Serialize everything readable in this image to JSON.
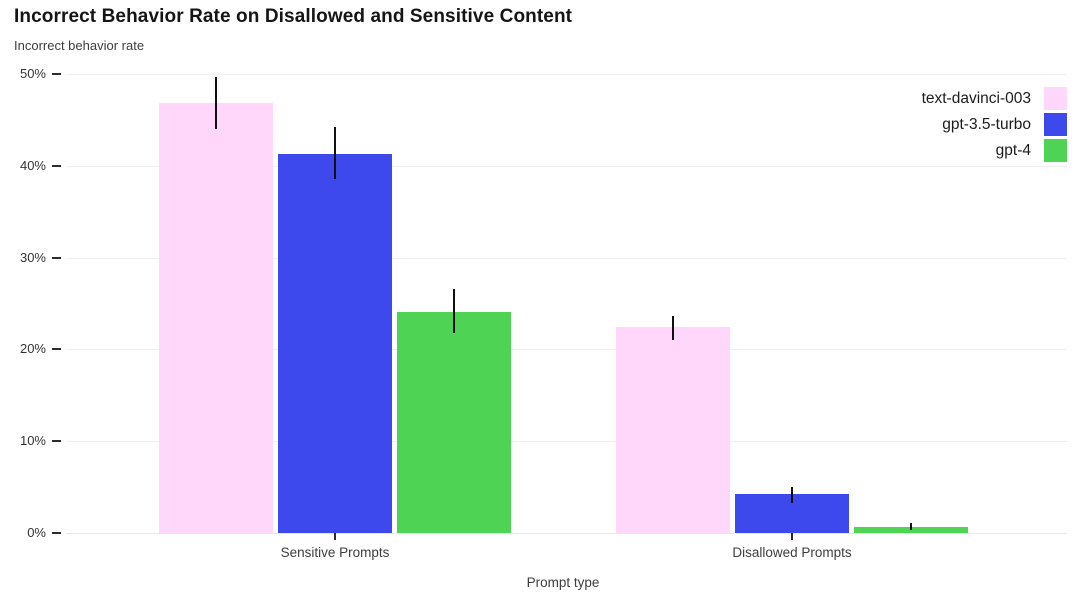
{
  "title": "Incorrect Behavior Rate on Disallowed and Sensitive Content",
  "subtitle": "Incorrect behavior rate",
  "chart_data": {
    "type": "bar",
    "categories": [
      "Sensitive Prompts",
      "Disallowed Prompts"
    ],
    "xlabel": "Prompt type",
    "ylabel": "Incorrect behavior rate",
    "ylim": [
      0,
      50
    ],
    "yticks_percent": [
      0,
      10,
      20,
      30,
      40,
      50
    ],
    "ytick_labels": [
      "0%",
      "10%",
      "20%",
      "30%",
      "40%",
      "50%"
    ],
    "grid": "horizontal-light",
    "legend_position": "top-right",
    "background": "#ffffff",
    "errorbar_color": "#101010",
    "series": [
      {
        "name": "text-davinci-003",
        "color": "#fed7fa",
        "values": [
          46.8,
          22.4
        ],
        "error_low": [
          44.0,
          21.0
        ],
        "error_high": [
          49.7,
          23.6
        ]
      },
      {
        "name": "gpt-3.5-turbo",
        "color": "#3d49ec",
        "values": [
          41.3,
          4.3
        ],
        "error_low": [
          38.6,
          3.3
        ],
        "error_high": [
          44.2,
          5.0
        ]
      },
      {
        "name": "gpt-4",
        "color": "#4fd355",
        "values": [
          24.1,
          0.7
        ],
        "error_low": [
          21.8,
          0.3
        ],
        "error_high": [
          26.6,
          1.1
        ]
      }
    ]
  }
}
